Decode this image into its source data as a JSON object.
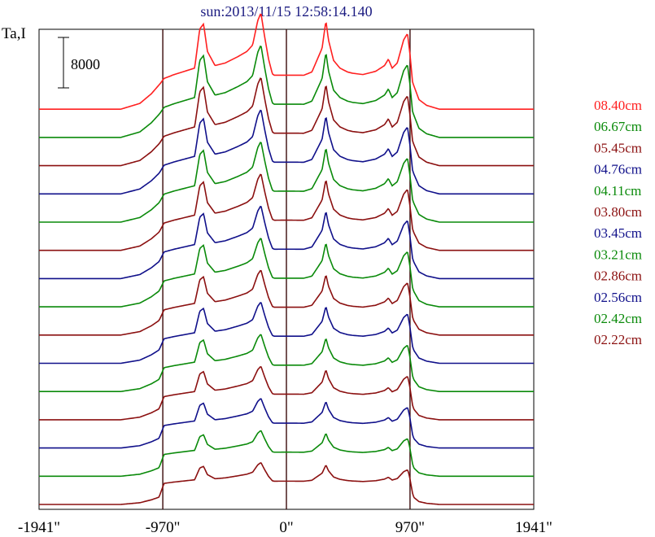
{
  "colors": {
    "red": "#ff2020",
    "green": "#0a8a0a",
    "maroon": "#8b1010",
    "navy": "#10108a",
    "title": "#1a1a80",
    "axis": "#000000",
    "vline_dark": "#3a0a0a"
  },
  "chart_data": {
    "type": "line",
    "title": "sun:2013/11/15 12:58:14.140",
    "ylabel": "Ta,I",
    "scale_bar_label": "8000",
    "scale_bar_value": 8000,
    "x_ticks": [
      {
        "value": -1941,
        "label": "-1941\""
      },
      {
        "value": -970,
        "label": "-970\""
      },
      {
        "value": 0,
        "label": "0\""
      },
      {
        "value": 970,
        "label": "970\""
      },
      {
        "value": 1941,
        "label": "1941\""
      }
    ],
    "xlim": [
      -1941,
      1941
    ],
    "vertical_lines": [
      -970,
      0,
      970
    ],
    "legend": [
      "08.40cm",
      "06.67cm",
      "05.45cm",
      "04.76cm",
      "04.11cm",
      "03.80cm",
      "03.45cm",
      "03.21cm",
      "02.86cm",
      "02.56cm",
      "02.42cm",
      "02.22cm"
    ],
    "series_colors": [
      "red",
      "green",
      "maroon",
      "navy",
      "green",
      "maroon",
      "navy",
      "green",
      "maroon",
      "navy",
      "green",
      "maroon",
      "navy",
      "green",
      "maroon"
    ],
    "n_traces": 15,
    "trace_offset_step": 2200,
    "profile": {
      "x": [
        -1941,
        -1300,
        -1150,
        -1060,
        -990,
        -960,
        -880,
        -800,
        -720,
        -680,
        -650,
        -620,
        -560,
        -480,
        -380,
        -310,
        -265,
        -225,
        -200,
        -170,
        -140,
        -110,
        -60,
        0,
        100,
        200,
        280,
        310,
        330,
        370,
        420,
        480,
        520,
        600,
        700,
        770,
        800,
        830,
        870,
        920,
        950,
        970,
        990,
        1040,
        1100,
        1200,
        1941
      ],
      "baseline": [
        0,
        0,
        900,
        2400,
        4000,
        4800,
        5400,
        5900,
        6400,
        12500,
        13300,
        9000,
        6800,
        7200,
        8200,
        9000,
        10000,
        13800,
        15000,
        11200,
        7800,
        5500,
        4800,
        4800,
        5000,
        5800,
        9500,
        13800,
        10800,
        7600,
        6400,
        5800,
        5600,
        5400,
        5900,
        6800,
        7800,
        6400,
        7200,
        10800,
        11800,
        8500,
        4200,
        1500,
        600,
        0,
        0
      ]
    }
  }
}
